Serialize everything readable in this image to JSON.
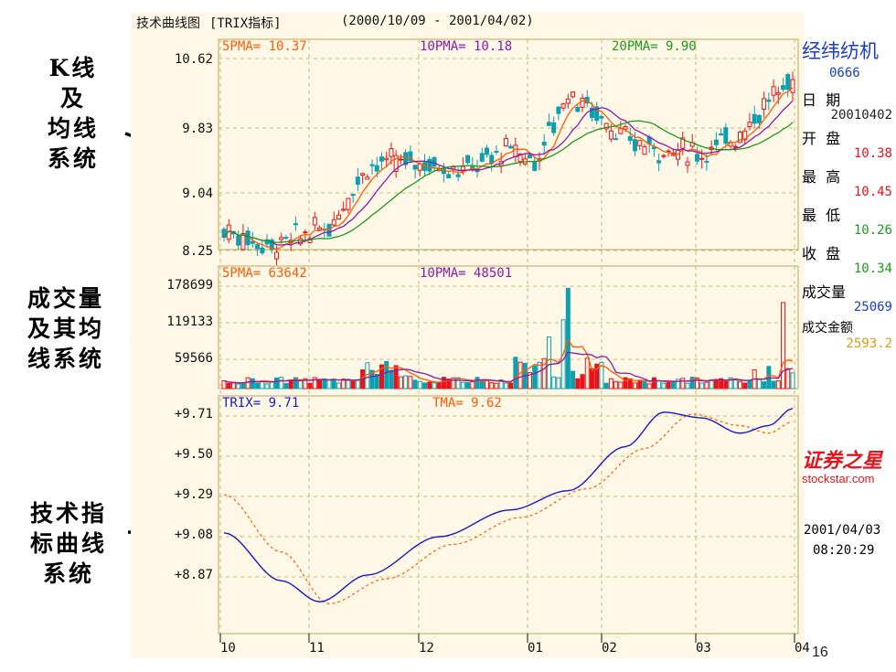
{
  "labels": {
    "kline": [
      "K线",
      "及",
      "均线",
      "系统"
    ],
    "volume": [
      "成交量",
      "及其均",
      "线系统"
    ],
    "trix": [
      "技术指",
      "标曲线",
      "系统"
    ]
  },
  "chart": {
    "title": "技术曲线图",
    "indicator": "[TRIX指标]",
    "range": "(2000/10/09 - 2001/04/02)",
    "ma_price": [
      {
        "name": "5PMA",
        "value": "10.37",
        "color": "#ff5a00"
      },
      {
        "name": "10PMA",
        "value": "10.18",
        "color": "#8a1aa8"
      },
      {
        "name": "20PMA",
        "value": "9.90",
        "color": "#1c9a1c"
      }
    ],
    "ma_volume": [
      {
        "name": "5PMA",
        "value": "63642",
        "color": "#ff5a00"
      },
      {
        "name": "10PMA",
        "value": "48501",
        "color": "#8a1aa8"
      }
    ],
    "trix_legend": [
      {
        "name": "TRIX",
        "value": "9.71",
        "color": "#1919c8"
      },
      {
        "name": "TMA",
        "value": "9.62",
        "color": "#ff5a00"
      }
    ],
    "price_ticks": [
      "10.62",
      "9.83",
      "9.04",
      "8.25"
    ],
    "volume_ticks": [
      "178699",
      "119133",
      "59566"
    ],
    "trix_ticks": [
      "+9.71",
      "+9.50",
      "+9.29",
      "+9.08",
      "+8.87"
    ],
    "x_ticks": [
      "10",
      "11",
      "12",
      "01",
      "02",
      "03",
      "04"
    ],
    "colors": {
      "up": "#e8131b",
      "down": "#0aa0b0",
      "bg": "#fff8e6",
      "grid": "#c8b873"
    }
  },
  "side": {
    "name": "经纬纺机",
    "code": "0666",
    "date_label": "日  期",
    "date": "20010402",
    "open_label": "开  盘",
    "open": "10.38",
    "high_label": "最  高",
    "high": "10.45",
    "low_label": "最  低",
    "low": "10.26",
    "close_label": "收  盘",
    "close": "10.34",
    "vol_label": "成交量",
    "volume": "25069",
    "amt_label": "成交金额",
    "amount": "2593.2",
    "brand": "证券之星",
    "site": "stockstar.com",
    "stamp_date": "2001/04/03",
    "stamp_time": "08:20:29"
  },
  "page_number": "16"
}
